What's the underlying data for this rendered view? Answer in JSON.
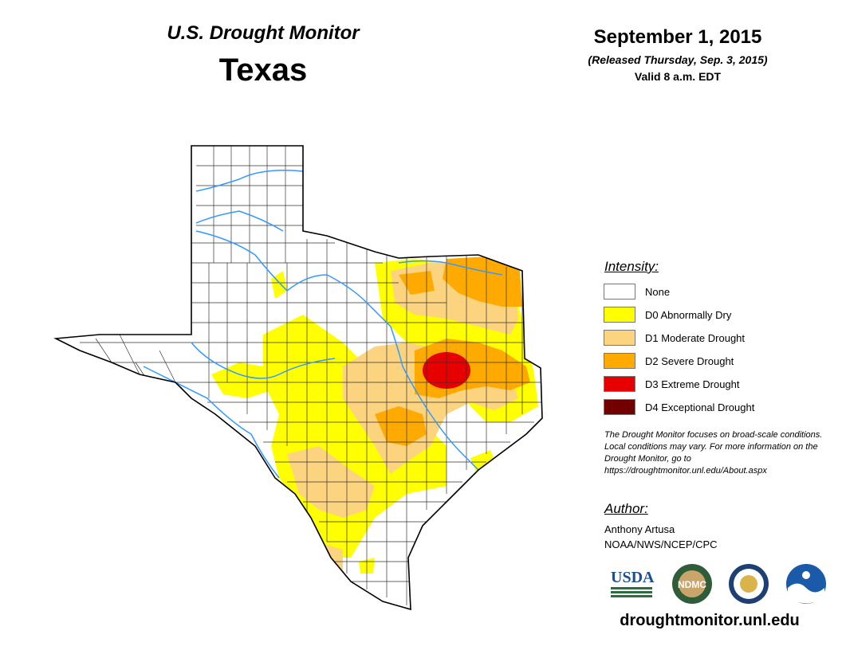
{
  "header": {
    "title": "U.S. Drought Monitor",
    "state": "Texas",
    "date": "September 1, 2015",
    "released": "(Released Thursday, Sep. 3, 2015)",
    "valid": "Valid 8 a.m. EDT"
  },
  "legend": {
    "title": "Intensity:",
    "items": [
      {
        "label": "None",
        "color": "#ffffff"
      },
      {
        "label": "D0 Abnormally Dry",
        "color": "#ffff00"
      },
      {
        "label": "D1 Moderate Drought",
        "color": "#fcd37f"
      },
      {
        "label": "D2 Severe Drought",
        "color": "#ffaa00"
      },
      {
        "label": "D3 Extreme Drought",
        "color": "#e60000"
      },
      {
        "label": "D4 Exceptional Drought",
        "color": "#730000"
      }
    ]
  },
  "note": "The Drought Monitor focuses on broad-scale conditions. Local conditions may vary. For more information on the Drought Monitor, go to https://droughtmonitor.unl.edu/About.aspx",
  "author": {
    "title": "Author:",
    "name": "Anthony Artusa",
    "org": "NOAA/NWS/NCEP/CPC"
  },
  "logos": {
    "usda": "USDA",
    "ndmc": "NDMC"
  },
  "footer_url": "droughtmonitor.unl.edu",
  "colors": {
    "river": "#3399ff",
    "county_line": "#333333"
  }
}
